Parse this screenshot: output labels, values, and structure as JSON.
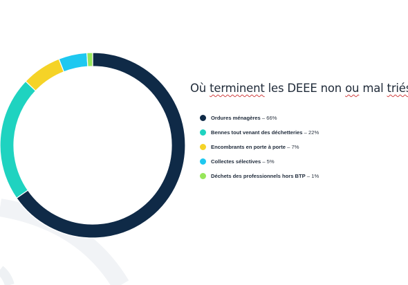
{
  "chart_data": {
    "type": "pie",
    "title": "Où terminent les DEEE non ou mal triés ?",
    "categories": [
      "Ordures ménagères",
      "Bennes tout venant des déchetteries",
      "Encombrants en porte à porte",
      "Collectes sélectives",
      "Déchets des professionnels hors BTP"
    ],
    "values": [
      66,
      22,
      7,
      5,
      1
    ],
    "colors": [
      "#0f2a47",
      "#1fd3c0",
      "#f5d327",
      "#1ec8f0",
      "#97e65a"
    ],
    "legend": [
      {
        "name": "Ordures ménagères",
        "value": "66%"
      },
      {
        "name": "Bennes tout venant des déchetteries",
        "value": "22%"
      },
      {
        "name": "Encombrants en porte à porte",
        "value": "7%"
      },
      {
        "name": "Collectes sélectives",
        "value": "5%"
      },
      {
        "name": "Déchets des professionnels hors BTP",
        "value": "1%"
      }
    ],
    "legend_position": "right",
    "separator": "–"
  },
  "title_parts": {
    "p1": "Où ",
    "p2": "terminent",
    "p3": " les DEEE non ",
    "p4": "ou",
    "p5": " mal ",
    "p6": "triés",
    "p7": " ?"
  }
}
